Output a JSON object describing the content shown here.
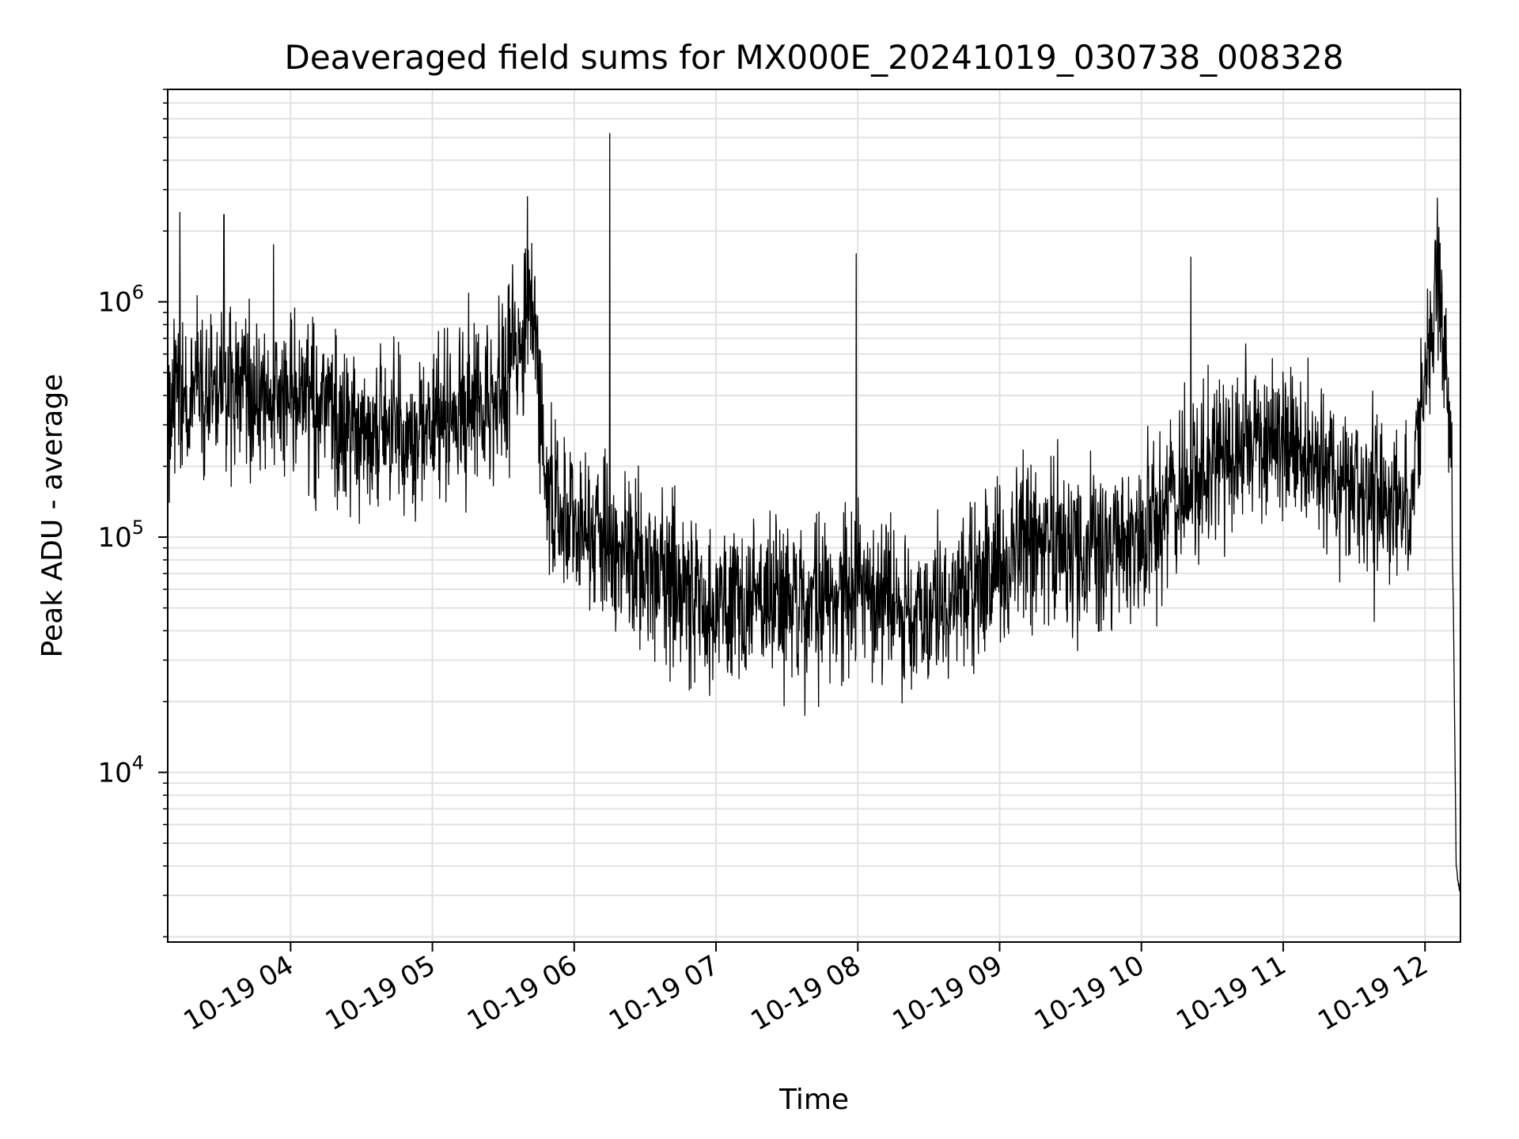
{
  "chart_data": {
    "type": "line",
    "title": "Deaveraged field sums for MX000E_20241019_030738_008328",
    "xlabel": "Time",
    "ylabel": "Peak ADU - average",
    "yscale": "log",
    "ylim": [
      1900,
      8000000
    ],
    "xlim": [
      "10-19 03:08",
      "10-19 12:15"
    ],
    "grid": true,
    "xticks": [
      "10-19 04",
      "10-19 05",
      "10-19 06",
      "10-19 07",
      "10-19 08",
      "10-19 09",
      "10-19 10",
      "10-19 11",
      "10-19 12"
    ],
    "xtick_hours": [
      4,
      5,
      6,
      7,
      8,
      9,
      10,
      11,
      12
    ],
    "yticks": [
      {
        "value": 10000,
        "base": "10",
        "exp": "4"
      },
      {
        "value": 100000,
        "base": "10",
        "exp": "5"
      },
      {
        "value": 1000000,
        "base": "10",
        "exp": "6"
      }
    ],
    "line_color": "#000000",
    "series": [
      {
        "x_hours": [
          3.13,
          3.5,
          4.0,
          4.5,
          5.0,
          5.4,
          5.6,
          5.7,
          5.75,
          5.8,
          6.0,
          6.5,
          7.0,
          7.5,
          8.0,
          8.5,
          9.0,
          9.3,
          9.7,
          10.0,
          10.4,
          10.7,
          11.0,
          11.5,
          11.9,
          12.0,
          12.05,
          12.1,
          12.15,
          12.18,
          12.2,
          12.22,
          12.25
        ],
        "y": [
          400000,
          450000,
          400000,
          300000,
          300000,
          350000,
          600000,
          1000000,
          500000,
          150000,
          110000,
          80000,
          50000,
          50000,
          60000,
          45000,
          70000,
          100000,
          80000,
          100000,
          200000,
          250000,
          250000,
          150000,
          150000,
          500000,
          800000,
          1200000,
          500000,
          250000,
          50000,
          4000,
          3000
        ],
        "spikes": [
          {
            "x_hour": 3.22,
            "y": 2400000
          },
          {
            "x_hour": 3.53,
            "y": 2350000
          },
          {
            "x_hour": 3.88,
            "y": 1750000
          },
          {
            "x_hour": 5.67,
            "y": 2800000
          },
          {
            "x_hour": 6.25,
            "y": 5200000
          },
          {
            "x_hour": 7.99,
            "y": 1600000
          },
          {
            "x_hour": 10.35,
            "y": 1550000
          },
          {
            "x_hour": 12.07,
            "y": 1800000
          }
        ]
      }
    ]
  }
}
